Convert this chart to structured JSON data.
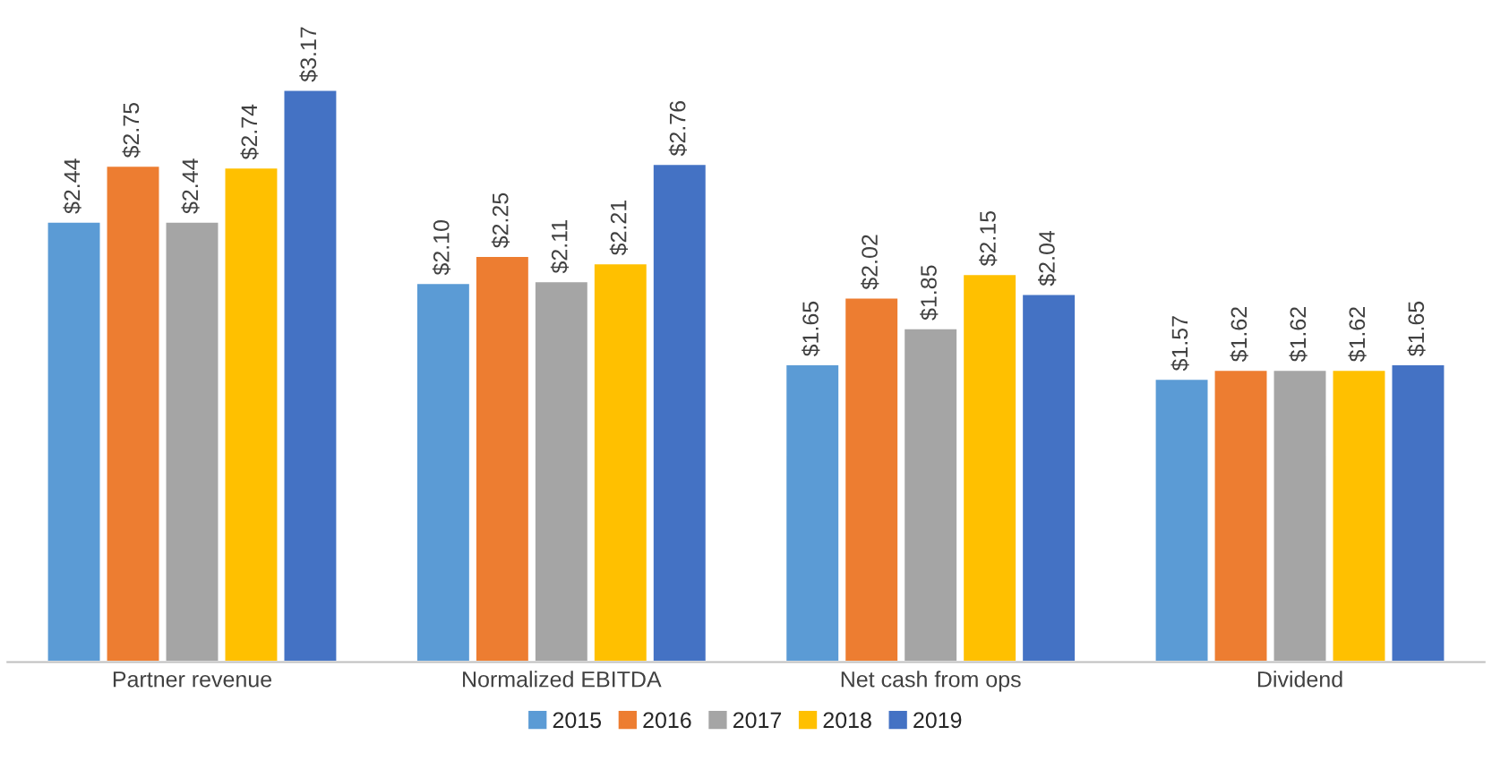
{
  "chart_data": {
    "type": "bar",
    "categories": [
      "Partner revenue",
      "Normalized EBITDA",
      "Net cash from ops",
      "Dividend"
    ],
    "series": [
      {
        "name": "2015",
        "color": "#5b9bd5",
        "values": [
          2.44,
          2.1,
          1.65,
          1.57
        ],
        "value_labels": [
          "$2.44",
          "$2.10",
          "$1.65",
          "$1.57"
        ]
      },
      {
        "name": "2016",
        "color": "#ed7d31",
        "values": [
          2.75,
          2.25,
          2.02,
          1.62
        ],
        "value_labels": [
          "$2.75",
          "$2.25",
          "$2.02",
          "$1.62"
        ]
      },
      {
        "name": "2017",
        "color": "#a5a5a5",
        "values": [
          2.44,
          2.11,
          1.85,
          1.62
        ],
        "value_labels": [
          "$2.44",
          "$2.11",
          "$1.85",
          "$1.62"
        ]
      },
      {
        "name": "2018",
        "color": "#ffc000",
        "values": [
          2.74,
          2.21,
          2.15,
          1.62
        ],
        "value_labels": [
          "$2.74",
          "$2.21",
          "$2.15",
          "$1.62"
        ]
      },
      {
        "name": "2019",
        "color": "#4472c4",
        "values": [
          3.17,
          2.76,
          2.04,
          1.65
        ],
        "value_labels": [
          "$3.17",
          "$2.76",
          "$2.04",
          "$1.65"
        ]
      }
    ],
    "legend": "bottom",
    "grid": false
  }
}
